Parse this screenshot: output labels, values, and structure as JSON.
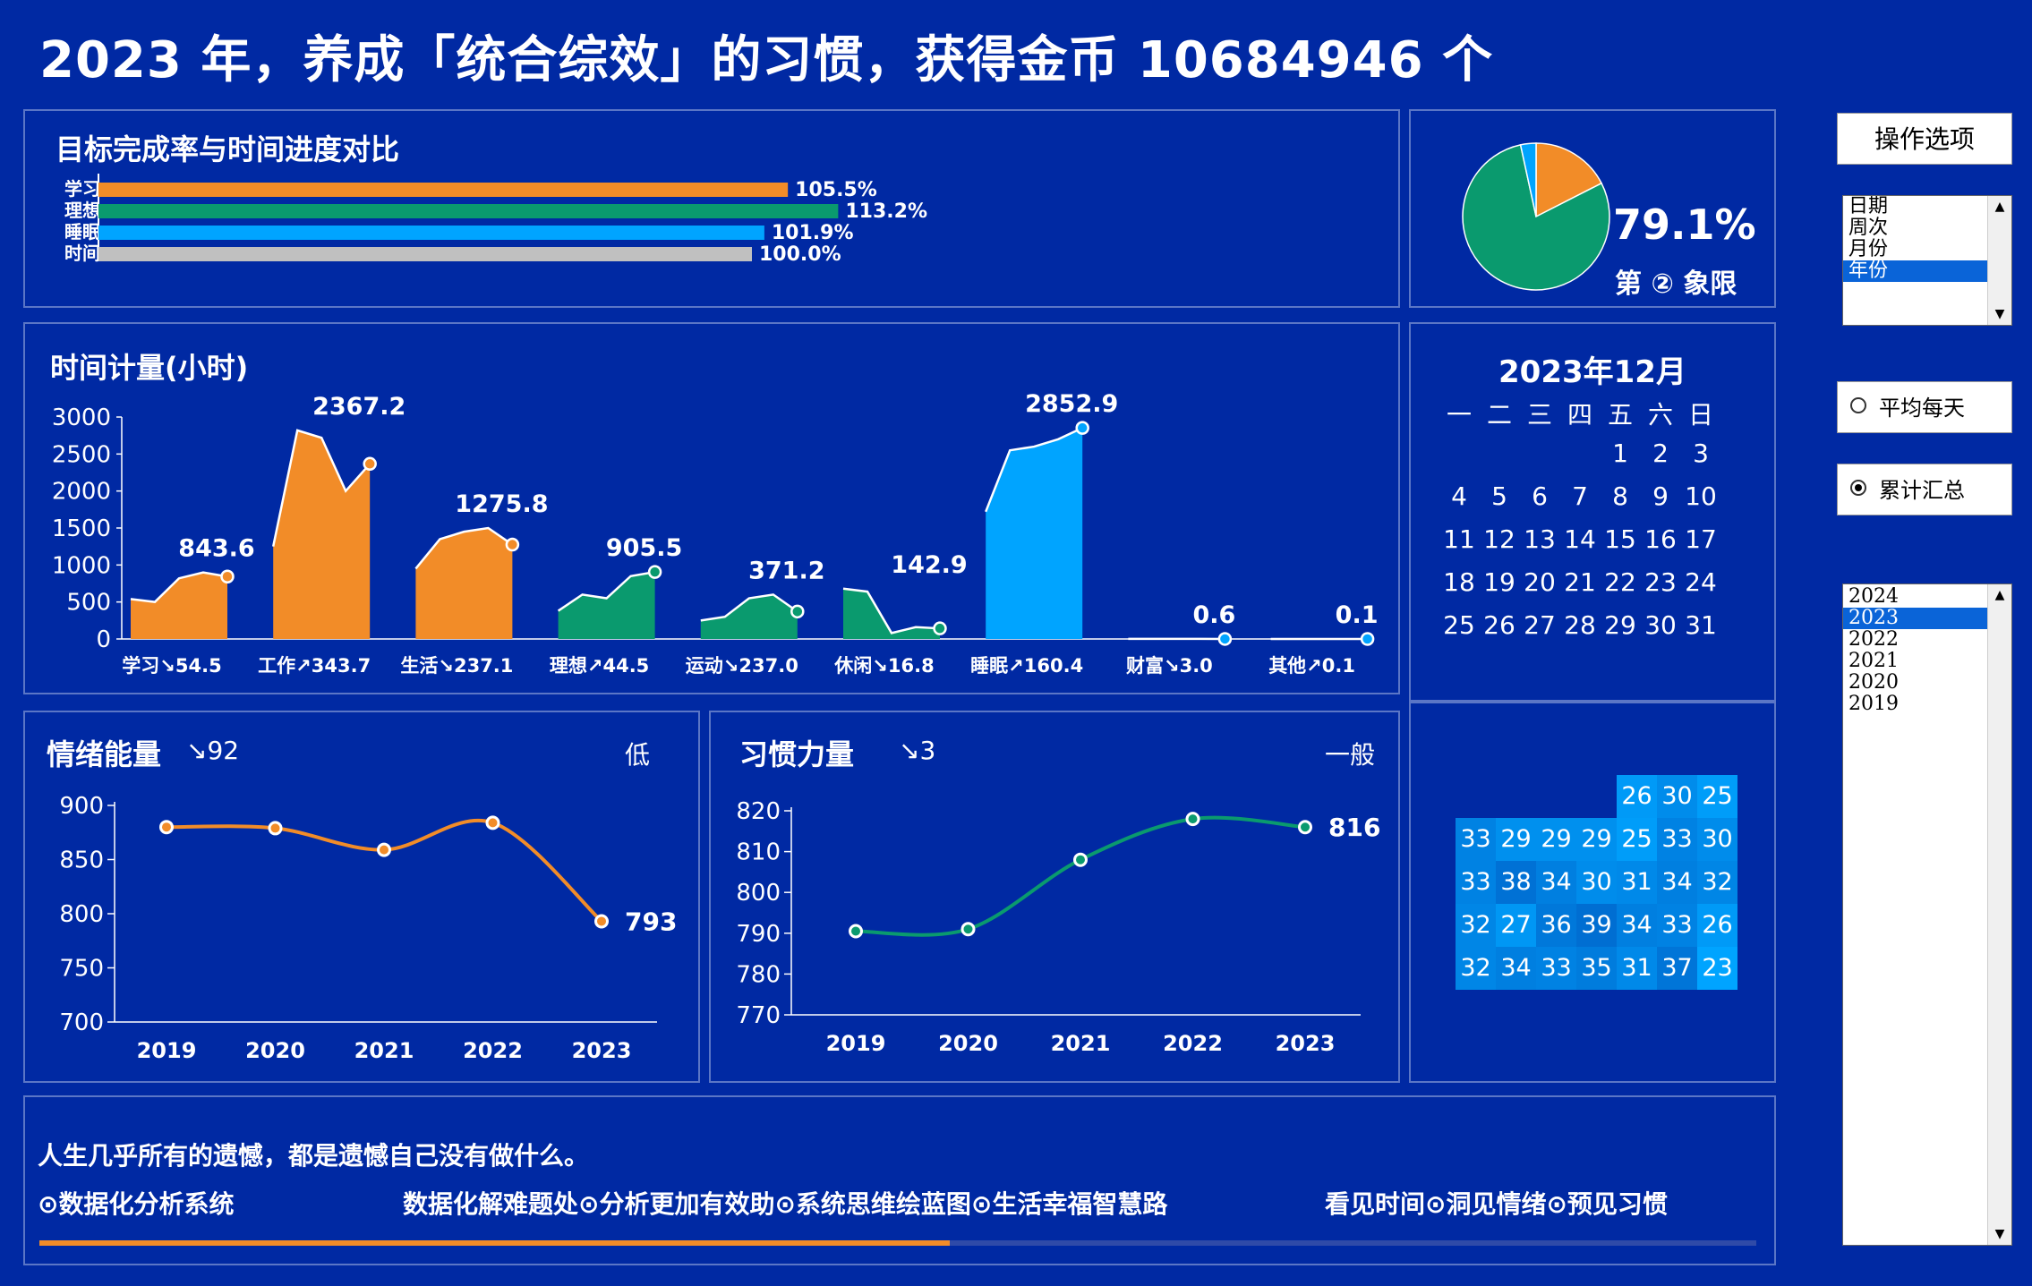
{
  "header": {
    "title": "2023 年，养成「统合综效」的习惯，获得金币 10684946 个"
  },
  "progress_panel": {
    "title": "目标完成率与时间进度对比",
    "bars": [
      {
        "label": "学习",
        "value": 105.5,
        "text": "105.5%",
        "color": "#f28c28"
      },
      {
        "label": "理想",
        "value": 113.2,
        "text": "113.2%",
        "color": "#0a9a6e"
      },
      {
        "label": "睡眠",
        "value": 101.9,
        "text": "101.9%",
        "color": "#00a4ff"
      },
      {
        "label": "时间",
        "value": 100.0,
        "text": "100.0%",
        "color": "#c0c0c0"
      }
    ]
  },
  "quadrant": {
    "percent": "79.1%",
    "label": "第 ② 象限",
    "slices": [
      {
        "value": 79.1,
        "color": "#0a9a6e"
      },
      {
        "value": 17.5,
        "color": "#f28c28"
      },
      {
        "value": 3.4,
        "color": "#00a4ff"
      }
    ]
  },
  "chart_data": [
    {
      "type": "area",
      "title": "时间计量(小时)",
      "ylim": [
        0,
        3000
      ],
      "yticks": [
        "0",
        "500",
        "1000",
        "1500",
        "2000",
        "2500",
        "3000"
      ],
      "groups": [
        {
          "label": "学习↘54.5",
          "total": "843.6",
          "color": "#f28c28",
          "values": [
            540,
            500,
            820,
            900,
            843.6
          ]
        },
        {
          "label": "工作↗343.7",
          "total": "2367.2",
          "color": "#f28c28",
          "values": [
            1250,
            2820,
            2720,
            2000,
            2367.2
          ]
        },
        {
          "label": "生活↘237.1",
          "total": "1275.8",
          "color": "#f28c28",
          "values": [
            950,
            1350,
            1450,
            1500,
            1275.8
          ]
        },
        {
          "label": "理想↗44.5",
          "total": "905.5",
          "color": "#0a9a6e",
          "values": [
            380,
            600,
            550,
            850,
            905.5
          ]
        },
        {
          "label": "运动↘237.0",
          "total": "371.2",
          "color": "#0a9a6e",
          "values": [
            250,
            300,
            550,
            600,
            371.2
          ]
        },
        {
          "label": "休闲↘16.8",
          "total": "142.9",
          "color": "#0a9a6e",
          "values": [
            680,
            640,
            80,
            160,
            142.9
          ]
        },
        {
          "label": "睡眠↗160.4",
          "total": "2852.9",
          "color": "#00a4ff",
          "values": [
            1720,
            2550,
            2600,
            2700,
            2852.9
          ]
        },
        {
          "label": "财富↘3.0",
          "total": "0.6",
          "color": "#00a4ff",
          "values": [
            2,
            1,
            1,
            1,
            0.6
          ]
        },
        {
          "label": "其他↗0.1",
          "total": "0.1",
          "color": "#00a4ff",
          "values": [
            0,
            0,
            0,
            0,
            0.1
          ]
        }
      ]
    },
    {
      "type": "line",
      "title": "情绪能量",
      "delta": "↘92",
      "level": "低",
      "x": [
        "2019",
        "2020",
        "2021",
        "2022",
        "2023"
      ],
      "values": [
        880,
        879,
        859,
        884,
        793
      ],
      "end_label": "793",
      "ylim": [
        700,
        900
      ],
      "yticks": [
        "700",
        "750",
        "800",
        "850",
        "900"
      ],
      "color": "#f28c28"
    },
    {
      "type": "line",
      "title": "习惯力量",
      "delta": "↘3",
      "level": "一般",
      "x": [
        "2019",
        "2020",
        "2021",
        "2022",
        "2023"
      ],
      "values": [
        790.5,
        791,
        808,
        818,
        816
      ],
      "end_label": "816",
      "ylim": [
        770,
        820
      ],
      "yticks": [
        "770",
        "780",
        "790",
        "800",
        "810",
        "820"
      ],
      "color": "#0a9a6e"
    }
  ],
  "calendar": {
    "title": "2023年12月",
    "weekdays": [
      "一",
      "二",
      "三",
      "四",
      "五",
      "六",
      "日"
    ],
    "days": [
      [
        "",
        "",
        "",
        "",
        "1",
        "2",
        "3"
      ],
      [
        "4",
        "5",
        "6",
        "7",
        "8",
        "9",
        "10"
      ],
      [
        "11",
        "12",
        "13",
        "14",
        "15",
        "16",
        "17"
      ],
      [
        "18",
        "19",
        "20",
        "21",
        "22",
        "23",
        "24"
      ],
      [
        "25",
        "26",
        "27",
        "28",
        "29",
        "30",
        "31"
      ]
    ]
  },
  "heatmap": {
    "rows": [
      [
        "",
        "",
        "",
        "",
        "26",
        "30",
        "25"
      ],
      [
        "33",
        "29",
        "29",
        "29",
        "25",
        "33",
        "30"
      ],
      [
        "33",
        "38",
        "34",
        "30",
        "31",
        "34",
        "32"
      ],
      [
        "32",
        "27",
        "36",
        "39",
        "34",
        "33",
        "26"
      ],
      [
        "32",
        "34",
        "33",
        "35",
        "31",
        "37",
        "23"
      ]
    ]
  },
  "footer": {
    "quote": "人生几乎所有的遗憾，都是遗憾自己没有做什么。",
    "left": "⊙数据化分析系统",
    "middle": "数据化解难题处⊙分析更加有效助⊙系统思维绘蓝图⊙生活幸福智慧路",
    "right": "看见时间⊙洞见情绪⊙预见习惯",
    "progress": 0.53
  },
  "controls": {
    "button": "操作选项",
    "list1": [
      "日期",
      "周次",
      "月份",
      "年份"
    ],
    "list1_selected": 3,
    "radio1": "平均每天",
    "radio2": "累计汇总",
    "radio_selected": 2,
    "list2": [
      "2024",
      "2023",
      "2022",
      "2021",
      "2020",
      "2019"
    ],
    "list2_selected": 1
  }
}
